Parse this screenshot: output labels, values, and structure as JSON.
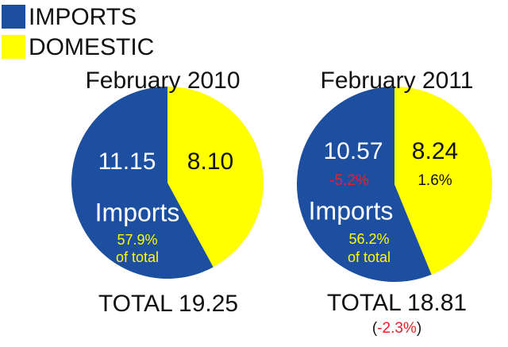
{
  "legend": {
    "items": [
      {
        "name": "IMPORTS",
        "color": "#1d4fa0"
      },
      {
        "name": "DOMESTIC",
        "color": "#ffff00"
      }
    ]
  },
  "chart_data": [
    {
      "type": "pie",
      "title": "February 2010",
      "values": [
        11.15,
        8.1
      ],
      "value_labels": [
        "11.15",
        "8.10"
      ],
      "slice_label": "Imports",
      "share_label": "57.9%",
      "share_note": "of total",
      "total_label": "TOTAL 19.25"
    },
    {
      "type": "pie",
      "title": "February 2011",
      "values": [
        10.57,
        8.24
      ],
      "value_labels": [
        "10.57",
        "8.24"
      ],
      "change_labels": [
        "-5.2%",
        "1.6%"
      ],
      "slice_label": "Imports",
      "share_label": "56.2%",
      "share_note": "of total",
      "total_label": "TOTAL 18.81",
      "total_change_parts": [
        "(",
        "-2.3%",
        ")"
      ]
    }
  ]
}
